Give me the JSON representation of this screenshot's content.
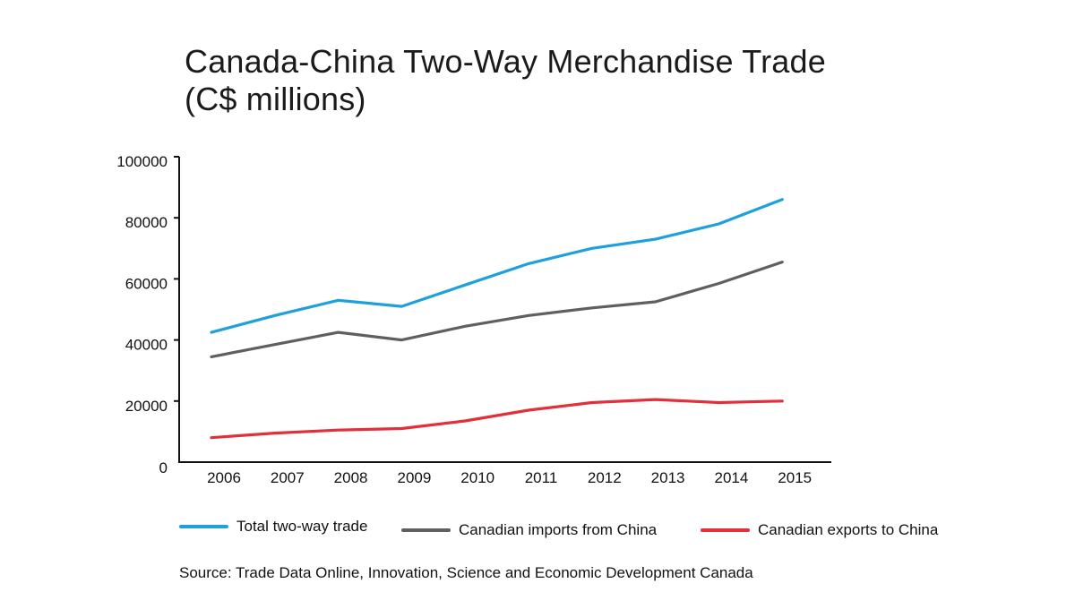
{
  "title": {
    "line1": "Canada-China Two-Way Merchandise Trade",
    "line2": "(C$ millions)"
  },
  "source": "Source: Trade Data Online, Innovation, Science and Economic Development Canada",
  "chart_data": {
    "type": "line",
    "title": "Canada-China Two-Way Merchandise Trade (C$ millions)",
    "xlabel": "",
    "ylabel": "",
    "ylim": [
      0,
      100000
    ],
    "yticks": [
      "0",
      "20000",
      "40000",
      "60000",
      "80000",
      "100000"
    ],
    "categories": [
      "2006",
      "2007",
      "2008",
      "2009",
      "2010",
      "2011",
      "2012",
      "2013",
      "2014",
      "2015"
    ],
    "grid": false,
    "legend_position": "bottom",
    "series": [
      {
        "name": "Total two-way trade",
        "color": "#1ea1db",
        "values": [
          42500,
          48000,
          53000,
          51000,
          58000,
          65000,
          70000,
          73000,
          78000,
          86000
        ]
      },
      {
        "name": "Canadian imports from China",
        "color": "#5f5f5f",
        "values": [
          34500,
          38500,
          42500,
          40000,
          44500,
          48000,
          50500,
          52500,
          58500,
          65500
        ]
      },
      {
        "name": "Canadian exports to China",
        "color": "#e1303a",
        "values": [
          8000,
          9500,
          10500,
          11000,
          13500,
          17000,
          19500,
          20500,
          19500,
          20000
        ]
      }
    ]
  }
}
